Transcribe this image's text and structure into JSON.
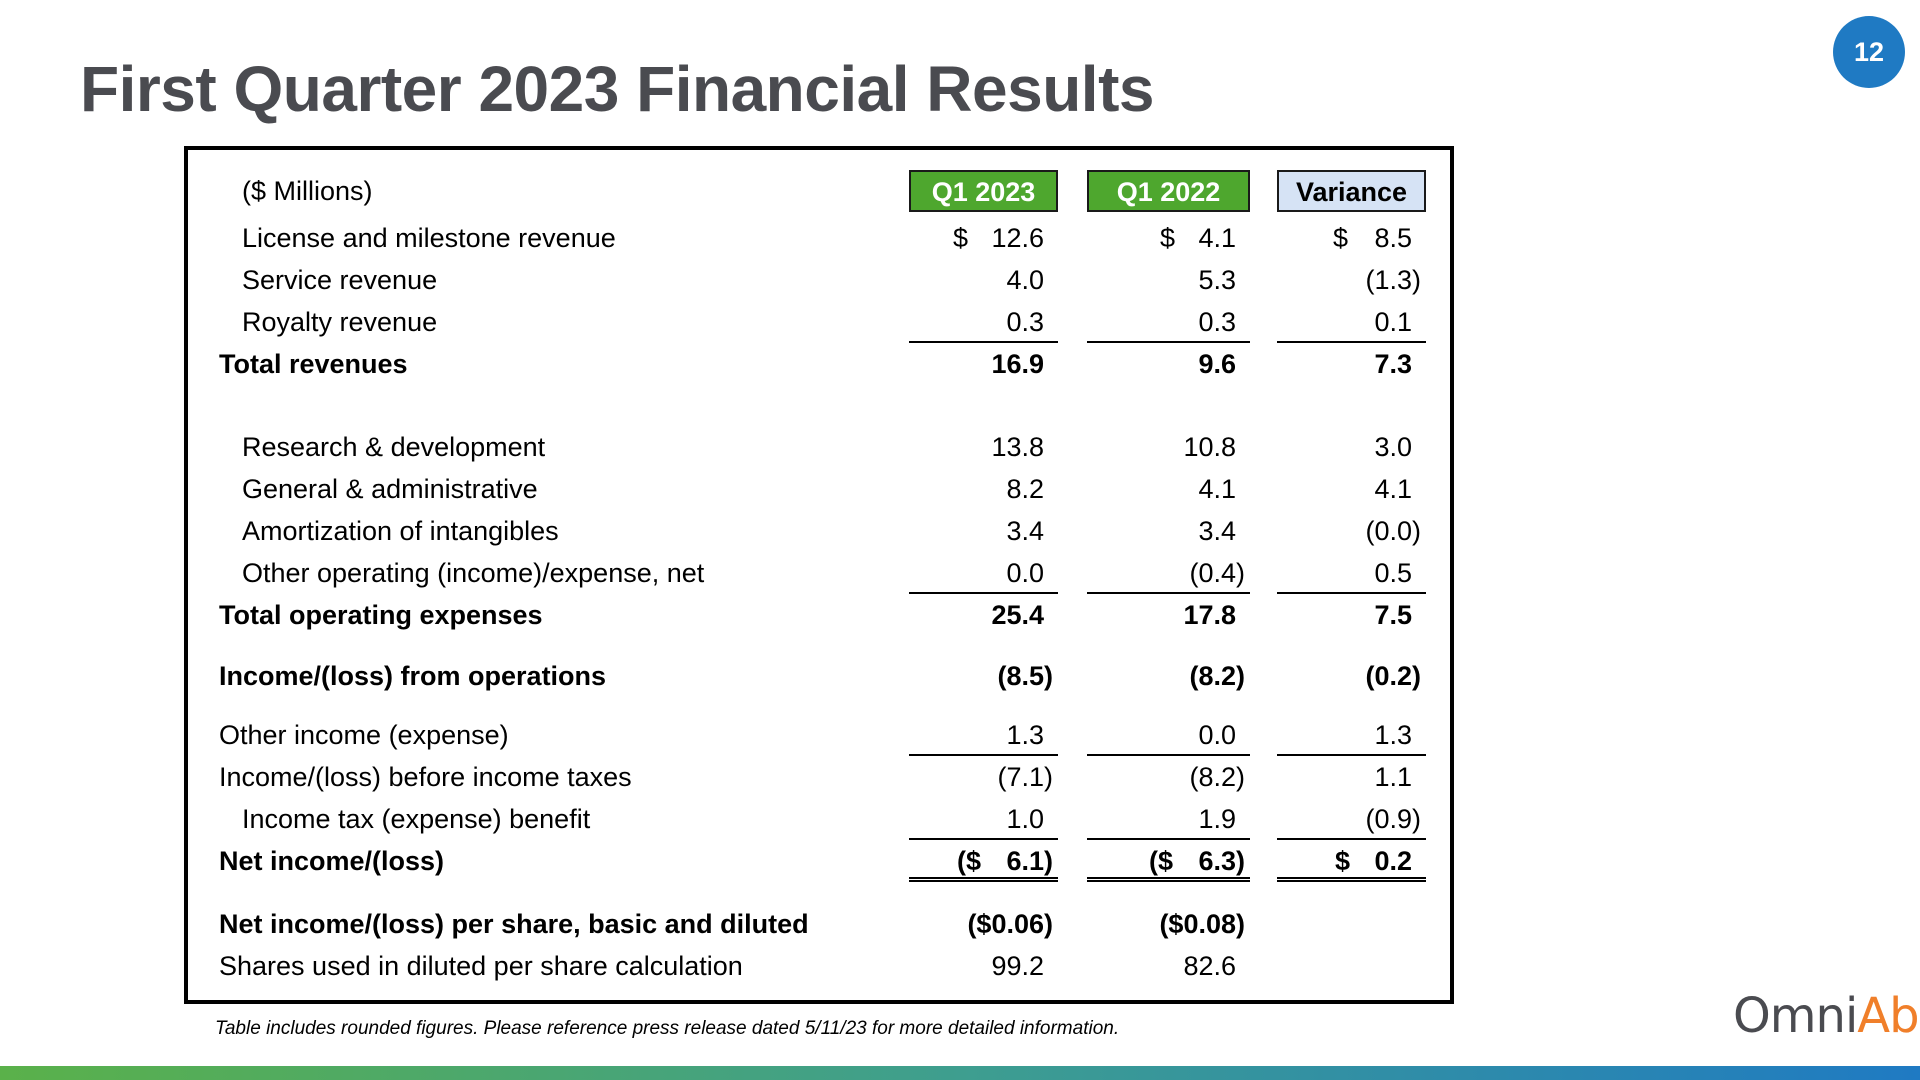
{
  "slide": {
    "title": "First Quarter 2023 Financial Results",
    "page_number": "12",
    "footnote": "Table includes rounded figures.  Please reference press release dated 5/11/23 for more detailed information.",
    "logo_text_a": "Omni",
    "logo_text_b": "Ab",
    "logo_mark": "®",
    "colors": {
      "title": "#4a4b50",
      "accent_blue": "#1f7ac3",
      "header_green": "#4ea72e",
      "variance_header": "#d6e3f5",
      "logo_orange": "#f07f2a"
    }
  },
  "table": {
    "units_label": "($ Millions)",
    "headers": [
      "Q1 2023",
      "Q1 2022",
      "Variance"
    ],
    "currency_symbol": "$",
    "rows": {
      "license": {
        "label": "License and milestone revenue",
        "values": [
          "12.6",
          "4.1",
          "8.5"
        ]
      },
      "service": {
        "label": "Service revenue",
        "values": [
          "4.0",
          "5.3",
          "(1.3)"
        ]
      },
      "royalty": {
        "label": "Royalty revenue",
        "values": [
          "0.3",
          "0.3",
          "0.1"
        ]
      },
      "total_revenues": {
        "label": "Total revenues",
        "values": [
          "16.9",
          "9.6",
          "7.3"
        ]
      },
      "rnd": {
        "label": "Research & development",
        "values": [
          "13.8",
          "10.8",
          "3.0"
        ]
      },
      "gna": {
        "label": "General & administrative",
        "values": [
          "8.2",
          "4.1",
          "4.1"
        ]
      },
      "amort": {
        "label": "Amortization of intangibles",
        "values": [
          "3.4",
          "3.4",
          "(0.0)"
        ]
      },
      "other_op": {
        "label": "Other operating (income)/expense, net",
        "values": [
          "0.0",
          "(0.4)",
          "0.5"
        ]
      },
      "total_opex": {
        "label": "Total operating expenses",
        "values": [
          "25.4",
          "17.8",
          "7.5"
        ]
      },
      "ops_income": {
        "label": "Income/(loss) from operations",
        "values": [
          "(8.5)",
          "(8.2)",
          "(0.2)"
        ]
      },
      "other_income": {
        "label": "Other income (expense)",
        "values": [
          "1.3",
          "0.0",
          "1.3"
        ]
      },
      "pretax": {
        "label": "Income/(loss) before income taxes",
        "values": [
          "(7.1)",
          "(8.2)",
          "1.1"
        ]
      },
      "tax": {
        "label": "Income tax (expense) benefit",
        "values": [
          "1.0",
          "1.9",
          "(0.9)"
        ]
      },
      "net_income": {
        "label": "Net income/(loss)",
        "prefix": [
          "($",
          "($",
          "$"
        ],
        "values": [
          "6.1)",
          "6.3)",
          "0.2"
        ]
      },
      "eps": {
        "label": "Net income/(loss) per share, basic and diluted",
        "values": [
          "($0.06)",
          "($0.08)"
        ]
      },
      "shares": {
        "label": "Shares used in diluted per share calculation",
        "values": [
          "99.2",
          "82.6"
        ]
      }
    }
  }
}
